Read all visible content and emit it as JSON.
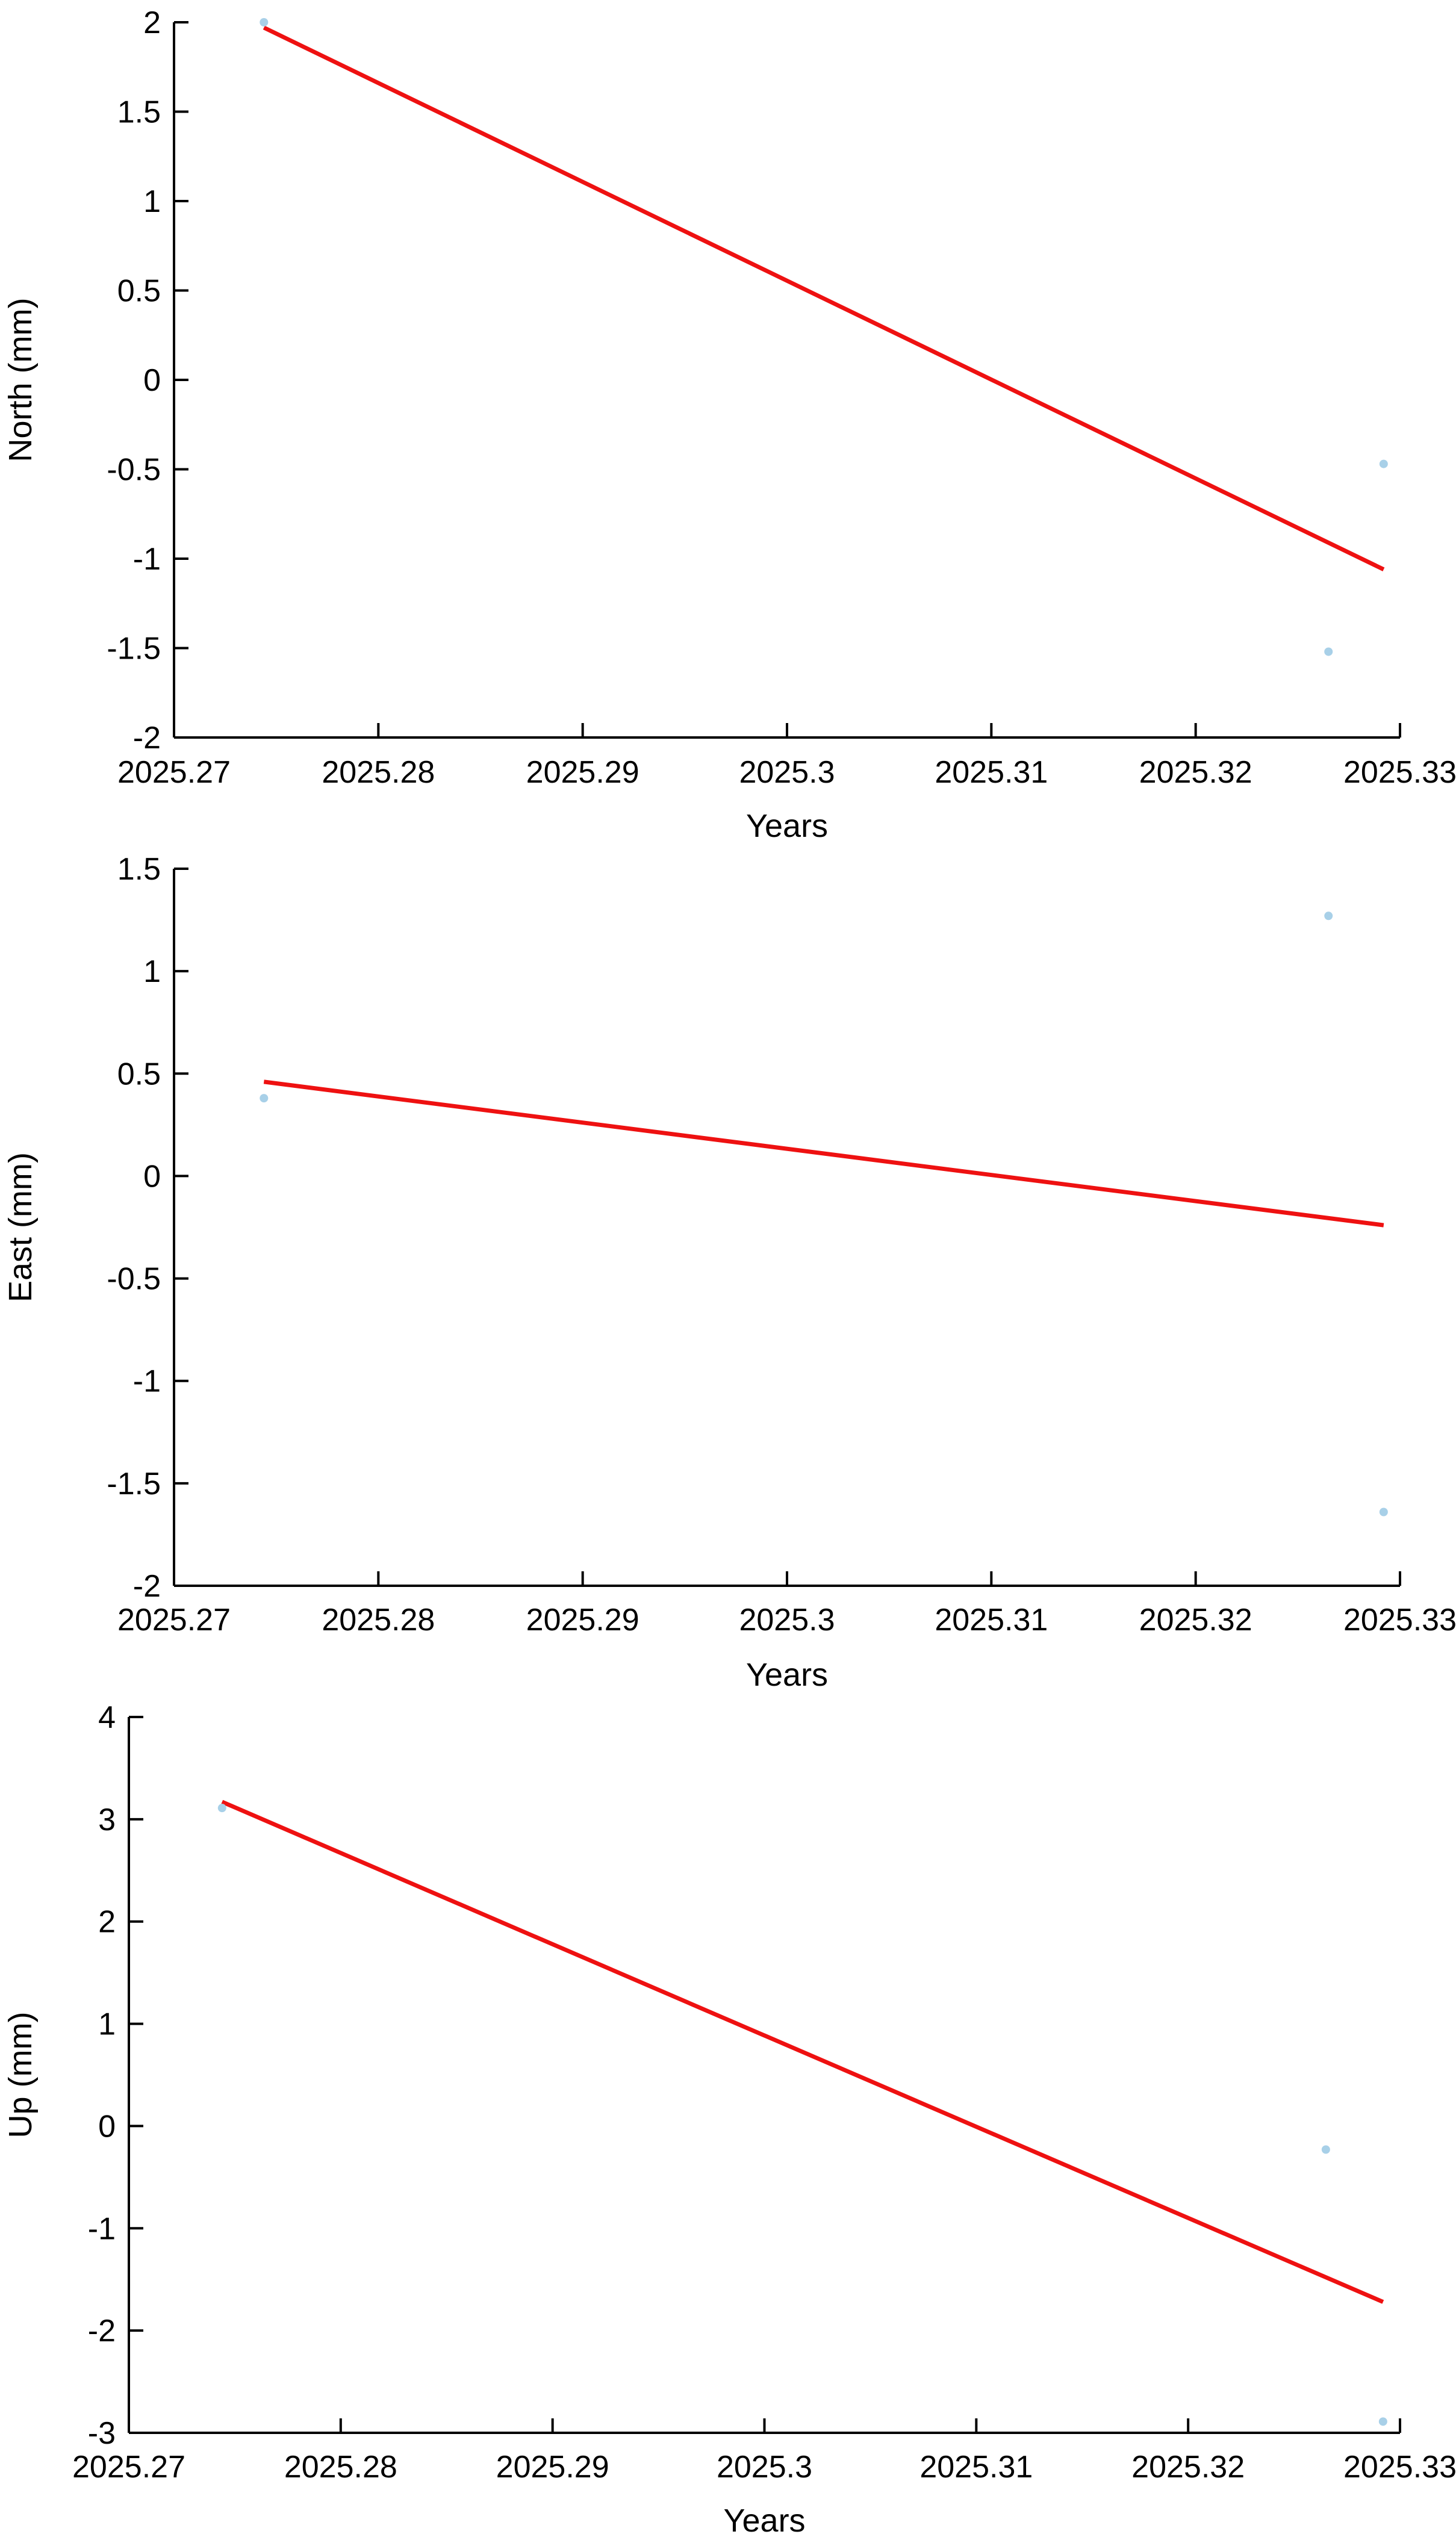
{
  "colors": {
    "background": "#ffffff",
    "axis": "#000000",
    "points": "#a8d0e8",
    "trend": "#ee1111"
  },
  "chart_data": [
    {
      "type": "scatter",
      "title": "",
      "xlabel": "Years",
      "ylabel": "North (mm)",
      "xlim": [
        2025.27,
        2025.33
      ],
      "ylim": [
        -2,
        2
      ],
      "xticks": [
        2025.27,
        2025.28,
        2025.29,
        2025.3,
        2025.31,
        2025.32,
        2025.33
      ],
      "xtick_labels": [
        "2025.27",
        "2025.28",
        "2025.29",
        "2025.3",
        "2025.31",
        "2025.32",
        "2025.33"
      ],
      "yticks": [
        -2,
        -1.5,
        -1,
        -0.5,
        0,
        0.5,
        1,
        1.5,
        2
      ],
      "ytick_labels": [
        "-2",
        "-1.5",
        "-1",
        "-0.5",
        "0",
        "0.5",
        "1",
        "1.5",
        "2"
      ],
      "grid": false,
      "legend": "none",
      "series": [
        {
          "kind": "points",
          "x": [
            2025.2744,
            2025.3265,
            2025.3292
          ],
          "y": [
            2.0,
            -1.52,
            -0.47
          ]
        },
        {
          "kind": "line",
          "x": [
            2025.2744,
            2025.3292
          ],
          "y": [
            1.97,
            -1.06
          ]
        }
      ]
    },
    {
      "type": "scatter",
      "title": "",
      "xlabel": "Years",
      "ylabel": "East (mm)",
      "xlim": [
        2025.27,
        2025.33
      ],
      "ylim": [
        -2,
        1.5
      ],
      "xticks": [
        2025.27,
        2025.28,
        2025.29,
        2025.3,
        2025.31,
        2025.32,
        2025.33
      ],
      "xtick_labels": [
        "2025.27",
        "2025.28",
        "2025.29",
        "2025.3",
        "2025.31",
        "2025.32",
        "2025.33"
      ],
      "yticks": [
        -2,
        -1.5,
        -1,
        -0.5,
        0,
        0.5,
        1,
        1.5
      ],
      "ytick_labels": [
        "-2",
        "-1.5",
        "-1",
        "-0.5",
        "0",
        "0.5",
        "1",
        "1.5"
      ],
      "grid": false,
      "legend": "none",
      "series": [
        {
          "kind": "points",
          "x": [
            2025.2744,
            2025.3265,
            2025.3292
          ],
          "y": [
            0.38,
            1.27,
            -1.64
          ]
        },
        {
          "kind": "line",
          "x": [
            2025.2744,
            2025.3292
          ],
          "y": [
            0.46,
            -0.24
          ]
        }
      ]
    },
    {
      "type": "scatter",
      "title": "",
      "xlabel": "Years",
      "ylabel": "Up (mm)",
      "xlim": [
        2025.27,
        2025.33
      ],
      "ylim": [
        -3,
        4
      ],
      "xticks": [
        2025.27,
        2025.28,
        2025.29,
        2025.3,
        2025.31,
        2025.32,
        2025.33
      ],
      "xtick_labels": [
        "2025.27",
        "2025.28",
        "2025.29",
        "2025.3",
        "2025.31",
        "2025.32",
        "2025.33"
      ],
      "yticks": [
        -3,
        -2,
        -1,
        0,
        1,
        2,
        3,
        4
      ],
      "ytick_labels": [
        "-3",
        "-2",
        "-1",
        "0",
        "1",
        "2",
        "3",
        "4"
      ],
      "grid": false,
      "legend": "none",
      "series": [
        {
          "kind": "points",
          "x": [
            2025.2744,
            2025.3265,
            2025.3292
          ],
          "y": [
            3.11,
            -0.23,
            -2.89
          ]
        },
        {
          "kind": "line",
          "x": [
            2025.2744,
            2025.3292
          ],
          "y": [
            3.17,
            -1.72
          ]
        }
      ]
    }
  ]
}
